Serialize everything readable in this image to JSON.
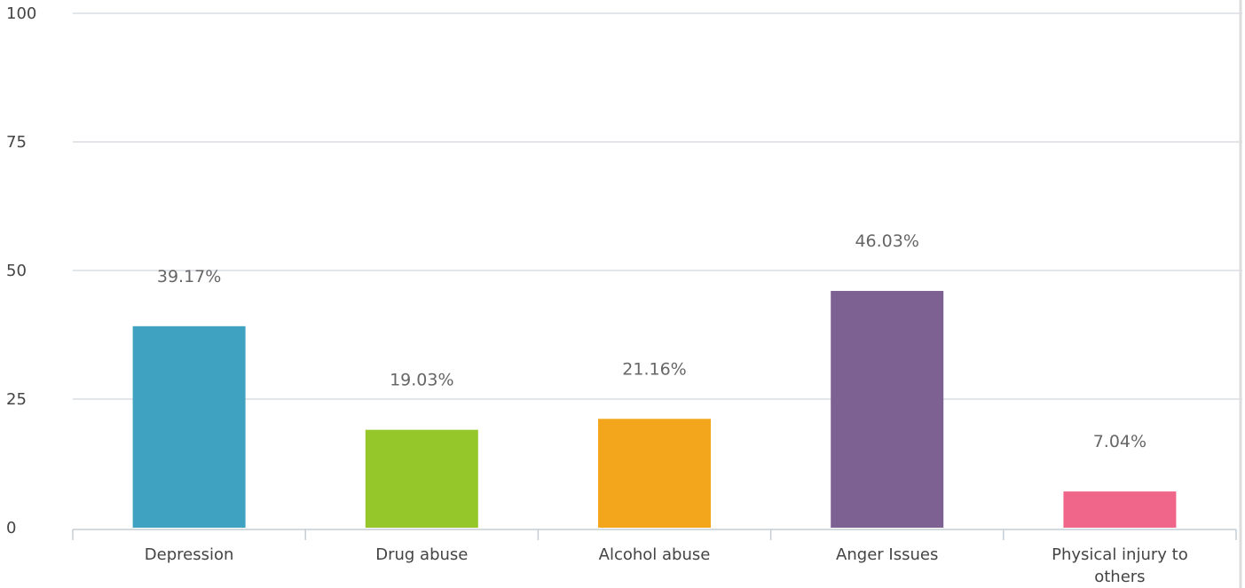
{
  "chart_data": {
    "type": "bar",
    "categories": [
      [
        "Depression"
      ],
      [
        "Drug abuse"
      ],
      [
        "Alcohol abuse"
      ],
      [
        "Anger Issues"
      ],
      [
        "Physical injury to",
        "others"
      ]
    ],
    "values": [
      39.17,
      19.03,
      21.16,
      46.03,
      7.04
    ],
    "data_labels": [
      "39.17%",
      "19.03%",
      "21.16%",
      "46.03%",
      "7.04%"
    ],
    "colors": [
      "#40a2c1",
      "#96c72a",
      "#f3a51c",
      "#7d6193",
      "#f0658a"
    ],
    "ylim": [
      0,
      100
    ],
    "yticks": [
      0,
      25,
      50,
      75,
      100
    ],
    "grid": true,
    "title": "",
    "xlabel": "",
    "ylabel": ""
  }
}
